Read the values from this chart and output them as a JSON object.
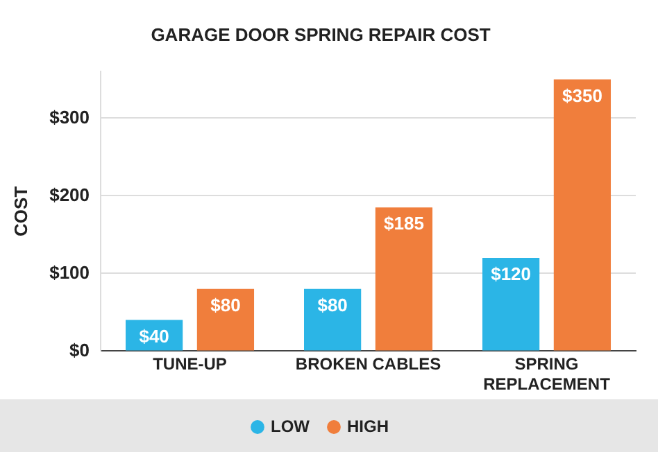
{
  "chart_data": {
    "type": "bar",
    "title": "GARAGE DOOR SPRING REPAIR COST",
    "ylabel": "COST",
    "categories": [
      "TUNE-UP",
      "BROKEN CABLES",
      "SPRING REPLACEMENT"
    ],
    "series": [
      {
        "name": "LOW",
        "color": "#2bb5e6",
        "values": [
          40,
          80,
          120
        ],
        "value_labels": [
          "$40",
          "$80",
          "$120"
        ]
      },
      {
        "name": "HIGH",
        "color": "#f07e3c",
        "values": [
          80,
          185,
          350
        ],
        "value_labels": [
          "$80",
          "$185",
          "$350"
        ]
      }
    ],
    "ylim": [
      0,
      360
    ],
    "yticks": [
      {
        "value": 0,
        "label": "$0"
      },
      {
        "value": 100,
        "label": "$100"
      },
      {
        "value": 200,
        "label": "$200"
      },
      {
        "value": 300,
        "label": "$300"
      }
    ],
    "grid": "y",
    "legend": "bottom"
  }
}
